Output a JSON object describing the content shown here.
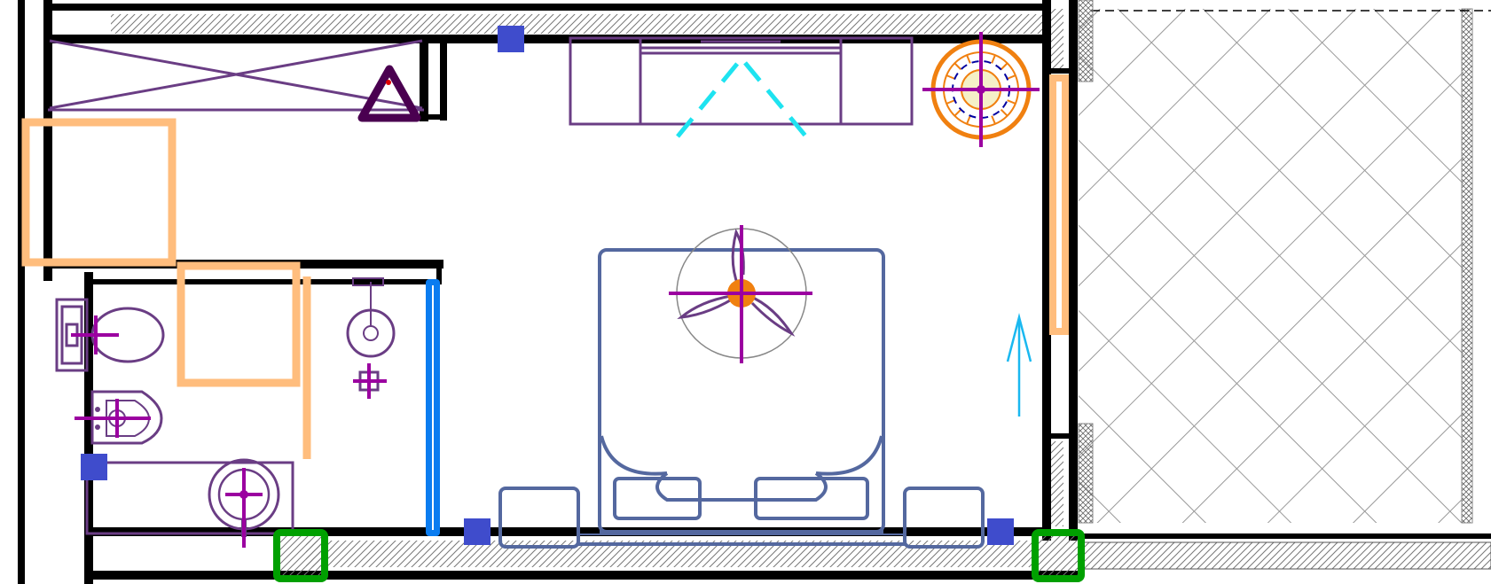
{
  "colors": {
    "wall": "#000000",
    "fixture": "#6a3d84",
    "furniture": "#54689f",
    "door": "#ffbd7d",
    "marker": "#3f4ccc",
    "column": "#00a000",
    "window": "#0a7cf0",
    "cyan": "#1ee3f0",
    "magenta": "#9b00a0",
    "orange": "#f08010",
    "arrow": "#1ab8f0",
    "triangle": "#4a0050"
  },
  "icons": [
    "shower-tray-icon",
    "triangle-symbol-icon",
    "washbasin-icon",
    "toilet-icon",
    "bidet-icon",
    "shower-head-icon",
    "sofa-icon",
    "ceiling-fan-icon",
    "floor-lamp-icon",
    "double-bed-icon",
    "nightstand-icon",
    "direction-arrow-icon",
    "structural-column-icon",
    "electrical-marker-icon"
  ]
}
